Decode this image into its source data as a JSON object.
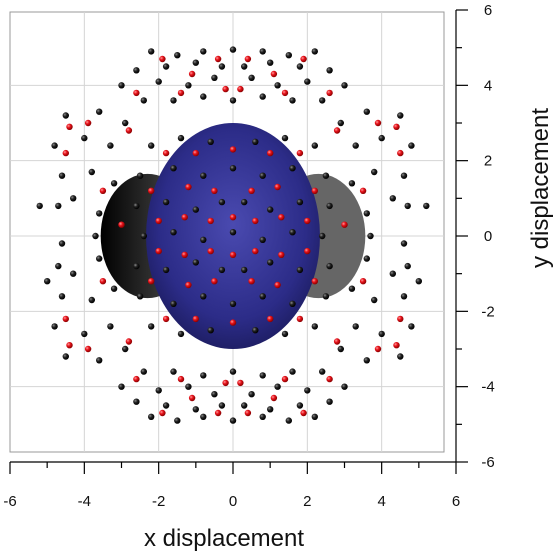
{
  "chart_data": {
    "type": "scatter",
    "title": "",
    "xlabel": "x displacement",
    "ylabel": "y displacement",
    "xlim": [
      -6,
      6
    ],
    "ylim": [
      -6,
      6
    ],
    "x_ticks": [
      "-6",
      "-4",
      "-2",
      "0",
      "2",
      "4",
      "6"
    ],
    "y_ticks": [
      "-6",
      "-4",
      "-2",
      "0",
      "2",
      "4",
      "6"
    ],
    "grid": true,
    "legend": "none",
    "colors": {
      "black_points": "#111111",
      "red_points": "#e8121b",
      "central_disk": "#2f2f8e",
      "side_lobes": "#1a1a1a"
    },
    "central_region": {
      "shape": "ellipse",
      "center": [
        0,
        0
      ],
      "x_extent": [
        -3.0,
        3.0
      ],
      "y_extent": [
        -3.0,
        3.0
      ]
    },
    "series": [
      {
        "marker_color": "black",
        "points": [
          [
            -2.2,
            4.9
          ],
          [
            -1.5,
            4.8
          ],
          [
            -0.8,
            4.9
          ],
          [
            0.0,
            4.95
          ],
          [
            0.8,
            4.9
          ],
          [
            1.5,
            4.8
          ],
          [
            2.2,
            4.9
          ],
          [
            -2.6,
            4.4
          ],
          [
            -1.8,
            4.5
          ],
          [
            -1.0,
            4.6
          ],
          [
            -0.3,
            4.5
          ],
          [
            0.3,
            4.5
          ],
          [
            1.0,
            4.6
          ],
          [
            1.8,
            4.5
          ],
          [
            2.6,
            4.4
          ],
          [
            -3.0,
            4.0
          ],
          [
            -2.0,
            4.1
          ],
          [
            -1.2,
            4.0
          ],
          [
            -0.5,
            4.2
          ],
          [
            0.5,
            4.2
          ],
          [
            1.2,
            4.0
          ],
          [
            2.0,
            4.1
          ],
          [
            3.0,
            4.0
          ],
          [
            -2.4,
            3.6
          ],
          [
            -1.6,
            3.6
          ],
          [
            -0.8,
            3.7
          ],
          [
            0.0,
            3.6
          ],
          [
            0.8,
            3.7
          ],
          [
            1.6,
            3.6
          ],
          [
            2.4,
            3.6
          ],
          [
            -4.5,
            3.2
          ],
          [
            -3.6,
            3.3
          ],
          [
            -2.9,
            3.0
          ],
          [
            2.9,
            3.0
          ],
          [
            3.6,
            3.3
          ],
          [
            4.5,
            3.2
          ],
          [
            -4.8,
            2.4
          ],
          [
            -4.0,
            2.6
          ],
          [
            -3.3,
            2.4
          ],
          [
            3.3,
            2.4
          ],
          [
            4.0,
            2.6
          ],
          [
            4.8,
            2.4
          ],
          [
            -4.6,
            1.6
          ],
          [
            -3.8,
            1.7
          ],
          [
            -3.2,
            1.4
          ],
          [
            3.2,
            1.4
          ],
          [
            3.8,
            1.7
          ],
          [
            4.6,
            1.6
          ],
          [
            -4.7,
            0.8
          ],
          [
            -3.6,
            0.6
          ],
          [
            3.6,
            0.6
          ],
          [
            4.7,
            0.8
          ],
          [
            -4.6,
            -0.2
          ],
          [
            -3.7,
            0.0
          ],
          [
            3.7,
            0.0
          ],
          [
            4.6,
            -0.2
          ],
          [
            -4.7,
            -0.8
          ],
          [
            -3.6,
            -0.6
          ],
          [
            3.6,
            -0.6
          ],
          [
            4.7,
            -0.8
          ],
          [
            -4.6,
            -1.6
          ],
          [
            -3.8,
            -1.7
          ],
          [
            -3.2,
            -1.4
          ],
          [
            3.2,
            -1.4
          ],
          [
            3.8,
            -1.7
          ],
          [
            4.6,
            -1.6
          ],
          [
            -4.8,
            -2.4
          ],
          [
            -4.0,
            -2.6
          ],
          [
            -3.3,
            -2.4
          ],
          [
            3.3,
            -2.4
          ],
          [
            4.0,
            -2.6
          ],
          [
            4.8,
            -2.4
          ],
          [
            -4.5,
            -3.2
          ],
          [
            -3.6,
            -3.3
          ],
          [
            -2.9,
            -3.0
          ],
          [
            2.9,
            -3.0
          ],
          [
            3.6,
            -3.3
          ],
          [
            4.5,
            -3.2
          ],
          [
            -2.4,
            -3.6
          ],
          [
            -1.6,
            -3.6
          ],
          [
            -0.8,
            -3.7
          ],
          [
            0.0,
            -3.6
          ],
          [
            0.8,
            -3.7
          ],
          [
            1.6,
            -3.6
          ],
          [
            2.4,
            -3.6
          ],
          [
            -3.0,
            -4.0
          ],
          [
            -2.0,
            -4.1
          ],
          [
            -1.2,
            -4.0
          ],
          [
            -0.5,
            -4.2
          ],
          [
            0.5,
            -4.2
          ],
          [
            1.2,
            -4.0
          ],
          [
            2.0,
            -4.1
          ],
          [
            3.0,
            -4.0
          ],
          [
            -2.6,
            -4.4
          ],
          [
            -1.8,
            -4.5
          ],
          [
            -1.0,
            -4.6
          ],
          [
            -0.3,
            -4.5
          ],
          [
            0.3,
            -4.5
          ],
          [
            1.0,
            -4.6
          ],
          [
            1.8,
            -4.5
          ],
          [
            2.6,
            -4.4
          ],
          [
            -2.2,
            -4.8
          ],
          [
            -1.5,
            -4.9
          ],
          [
            -0.8,
            -4.8
          ],
          [
            0.0,
            -4.9
          ],
          [
            0.8,
            -4.8
          ],
          [
            1.5,
            -4.9
          ],
          [
            2.2,
            -4.8
          ],
          [
            -2.2,
            2.4
          ],
          [
            -1.4,
            2.6
          ],
          [
            -0.6,
            2.5
          ],
          [
            0.6,
            2.5
          ],
          [
            1.4,
            2.6
          ],
          [
            2.2,
            2.4
          ],
          [
            -2.5,
            1.6
          ],
          [
            -1.6,
            1.8
          ],
          [
            -0.8,
            1.6
          ],
          [
            0.0,
            1.8
          ],
          [
            0.8,
            1.6
          ],
          [
            1.6,
            1.8
          ],
          [
            2.5,
            1.6
          ],
          [
            -2.6,
            0.8
          ],
          [
            -1.8,
            0.9
          ],
          [
            -1.0,
            0.7
          ],
          [
            -0.3,
            0.9
          ],
          [
            0.3,
            0.9
          ],
          [
            1.0,
            0.7
          ],
          [
            1.8,
            0.9
          ],
          [
            2.6,
            0.8
          ],
          [
            -2.4,
            0.0
          ],
          [
            -1.6,
            0.1
          ],
          [
            -0.8,
            -0.1
          ],
          [
            0.0,
            0.1
          ],
          [
            0.8,
            -0.1
          ],
          [
            1.6,
            0.1
          ],
          [
            2.4,
            0.0
          ],
          [
            -2.6,
            -0.8
          ],
          [
            -1.8,
            -0.9
          ],
          [
            -1.0,
            -0.7
          ],
          [
            -0.3,
            -0.9
          ],
          [
            0.3,
            -0.9
          ],
          [
            1.0,
            -0.7
          ],
          [
            1.8,
            -0.9
          ],
          [
            2.6,
            -0.8
          ],
          [
            -2.5,
            -1.6
          ],
          [
            -1.6,
            -1.8
          ],
          [
            -0.8,
            -1.6
          ],
          [
            0.0,
            -1.8
          ],
          [
            0.8,
            -1.6
          ],
          [
            1.6,
            -1.8
          ],
          [
            2.5,
            -1.6
          ],
          [
            -2.2,
            -2.4
          ],
          [
            -1.4,
            -2.6
          ],
          [
            -0.6,
            -2.5
          ],
          [
            0.6,
            -2.5
          ],
          [
            1.4,
            -2.6
          ],
          [
            2.2,
            -2.4
          ],
          [
            -5.2,
            0.8
          ],
          [
            5.2,
            0.8
          ],
          [
            -5.0,
            -1.2
          ],
          [
            5.0,
            -1.2
          ],
          [
            -4.3,
            1.0
          ],
          [
            4.3,
            1.0
          ],
          [
            -4.3,
            -1.0
          ],
          [
            4.3,
            -1.0
          ]
        ]
      },
      {
        "marker_color": "red",
        "points": [
          [
            -1.9,
            4.7
          ],
          [
            -1.1,
            4.3
          ],
          [
            -0.4,
            4.7
          ],
          [
            0.4,
            4.7
          ],
          [
            1.1,
            4.3
          ],
          [
            1.9,
            4.7
          ],
          [
            -2.6,
            3.8
          ],
          [
            -1.4,
            3.8
          ],
          [
            -0.2,
            3.9
          ],
          [
            0.2,
            3.9
          ],
          [
            1.4,
            3.8
          ],
          [
            2.6,
            3.8
          ],
          [
            -4.4,
            2.9
          ],
          [
            -3.9,
            3.0
          ],
          [
            -4.5,
            2.2
          ],
          [
            3.9,
            3.0
          ],
          [
            4.4,
            2.9
          ],
          [
            4.5,
            2.2
          ],
          [
            -3.5,
            1.2
          ],
          [
            3.5,
            1.2
          ],
          [
            -3.0,
            0.3
          ],
          [
            3.0,
            0.3
          ],
          [
            -3.5,
            -1.2
          ],
          [
            3.5,
            -1.2
          ],
          [
            -4.4,
            -2.9
          ],
          [
            -3.9,
            -3.0
          ],
          [
            -4.5,
            -2.2
          ],
          [
            3.9,
            -3.0
          ],
          [
            4.4,
            -2.9
          ],
          [
            4.5,
            -2.2
          ],
          [
            -2.6,
            -3.8
          ],
          [
            -1.4,
            -3.8
          ],
          [
            -0.2,
            -3.9
          ],
          [
            0.2,
            -3.9
          ],
          [
            1.4,
            -3.8
          ],
          [
            2.6,
            -3.8
          ],
          [
            -1.9,
            -4.7
          ],
          [
            -1.1,
            -4.3
          ],
          [
            -0.4,
            -4.7
          ],
          [
            0.4,
            -4.7
          ],
          [
            1.1,
            -4.3
          ],
          [
            1.9,
            -4.7
          ],
          [
            -1.8,
            2.2
          ],
          [
            -1.0,
            2.2
          ],
          [
            0.0,
            2.3
          ],
          [
            1.0,
            2.2
          ],
          [
            1.8,
            2.2
          ],
          [
            -2.2,
            1.2
          ],
          [
            -1.2,
            1.3
          ],
          [
            -0.5,
            1.2
          ],
          [
            0.5,
            1.2
          ],
          [
            1.2,
            1.3
          ],
          [
            2.2,
            1.2
          ],
          [
            -2.0,
            0.4
          ],
          [
            -1.3,
            0.5
          ],
          [
            -0.6,
            0.4
          ],
          [
            0.0,
            0.5
          ],
          [
            0.6,
            0.4
          ],
          [
            1.3,
            0.5
          ],
          [
            2.0,
            0.4
          ],
          [
            -2.0,
            -0.4
          ],
          [
            -1.3,
            -0.5
          ],
          [
            -0.6,
            -0.4
          ],
          [
            0.0,
            -0.5
          ],
          [
            0.6,
            -0.4
          ],
          [
            1.3,
            -0.5
          ],
          [
            2.0,
            -0.4
          ],
          [
            -2.2,
            -1.2
          ],
          [
            -1.2,
            -1.3
          ],
          [
            -0.5,
            -1.2
          ],
          [
            0.5,
            -1.2
          ],
          [
            1.2,
            -1.3
          ],
          [
            2.2,
            -1.2
          ],
          [
            -1.8,
            -2.2
          ],
          [
            -1.0,
            -2.2
          ],
          [
            0.0,
            -2.3
          ],
          [
            1.0,
            -2.2
          ],
          [
            1.8,
            -2.2
          ],
          [
            -2.8,
            2.8
          ],
          [
            2.8,
            2.8
          ],
          [
            -2.8,
            -2.8
          ],
          [
            2.8,
            -2.8
          ]
        ]
      }
    ]
  }
}
